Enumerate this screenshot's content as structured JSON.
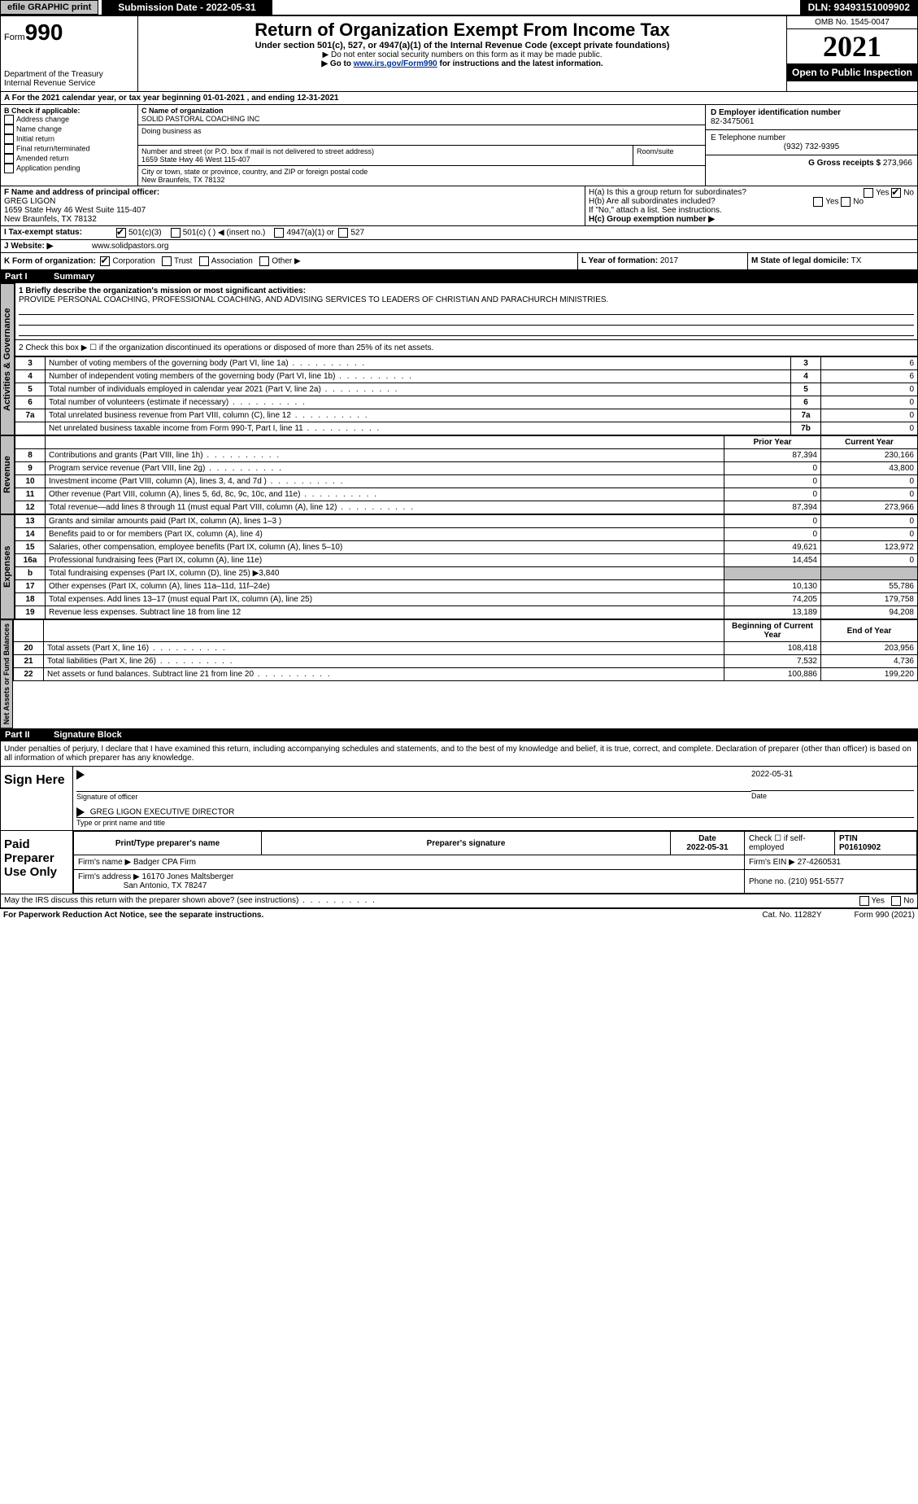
{
  "topbar": {
    "efile": "efile GRAPHIC print",
    "submission": "Submission Date - 2022-05-31",
    "dln": "DLN: 93493151009902"
  },
  "header": {
    "form_word": "Form",
    "form_num": "990",
    "dept": "Department of the Treasury",
    "irs": "Internal Revenue Service",
    "title": "Return of Organization Exempt From Income Tax",
    "subtitle": "Under section 501(c), 527, or 4947(a)(1) of the Internal Revenue Code (except private foundations)",
    "note1": "▶ Do not enter social security numbers on this form as it may be made public.",
    "note2_pre": "▶ Go to ",
    "note2_link": "www.irs.gov/Form990",
    "note2_post": " for instructions and the latest information.",
    "omb": "OMB No. 1545-0047",
    "year": "2021",
    "open_public": "Open to Public Inspection"
  },
  "rowA": "A For the 2021 calendar year, or tax year beginning 01-01-2021    , and ending 12-31-2021",
  "B": {
    "title": "B Check if applicable:",
    "opts": [
      "Address change",
      "Name change",
      "Initial return",
      "Final return/terminated",
      "Amended return",
      "Application pending"
    ]
  },
  "C": {
    "name_label": "C Name of organization",
    "name": "SOLID PASTORAL COACHING INC",
    "dba_label": "Doing business as",
    "street_label": "Number and street (or P.O. box if mail is not delivered to street address)",
    "room_label": "Room/suite",
    "street": "1659 State Hwy 46 West 115-407",
    "city_label": "City or town, state or province, country, and ZIP or foreign postal code",
    "city": "New Braunfels, TX  78132"
  },
  "D": {
    "ein_label": "D Employer identification number",
    "ein": "82-3475061",
    "tel_label": "E Telephone number",
    "tel": "(932) 732-9395",
    "gross_label": "G Gross receipts $",
    "gross": "273,966"
  },
  "F": {
    "label": "F  Name and address of principal officer:",
    "name": "GREG LIGON",
    "addr1": "1659 State Hwy 46 West Suite 115-407",
    "addr2": "New Braunfels, TX  78132"
  },
  "H": {
    "a": "H(a)  Is this a group return for subordinates?",
    "a_yes": "Yes",
    "a_no": "No",
    "b": "H(b)  Are all subordinates included?",
    "b_note": "If \"No,\" attach a list. See instructions.",
    "c": "H(c)  Group exemption number ▶"
  },
  "I": {
    "label": "I    Tax-exempt status:",
    "opts": [
      "501(c)(3)",
      "501(c) (   ) ◀ (insert no.)",
      "4947(a)(1) or",
      "527"
    ]
  },
  "J": {
    "label": "J   Website: ▶",
    "value": "www.solidpastors.org"
  },
  "K": {
    "label": "K Form of organization:",
    "opts": [
      "Corporation",
      "Trust",
      "Association",
      "Other ▶"
    ],
    "L_label": "L Year of formation:",
    "L_val": "2017",
    "M_label": "M State of legal domicile:",
    "M_val": "TX"
  },
  "part1": {
    "header_num": "Part I",
    "header_title": "Summary",
    "line1_label": "1  Briefly describe the organization's mission or most significant activities:",
    "line1_text": "PROVIDE PERSONAL COACHING, PROFESSIONAL COACHING, AND ADVISING SERVICES TO LEADERS OF CHRISTIAN AND PARACHURCH MINISTRIES.",
    "line2": "2   Check this box ▶ ☐  if the organization discontinued its operations or disposed of more than 25% of its net assets.",
    "gov_rows": [
      {
        "n": "3",
        "d": "Number of voting members of the governing body (Part VI, line 1a)",
        "box": "3",
        "v": "6"
      },
      {
        "n": "4",
        "d": "Number of independent voting members of the governing body (Part VI, line 1b)",
        "box": "4",
        "v": "6"
      },
      {
        "n": "5",
        "d": "Total number of individuals employed in calendar year 2021 (Part V, line 2a)",
        "box": "5",
        "v": "0"
      },
      {
        "n": "6",
        "d": "Total number of volunteers (estimate if necessary)",
        "box": "6",
        "v": "0"
      },
      {
        "n": "7a",
        "d": "Total unrelated business revenue from Part VIII, column (C), line 12",
        "box": "7a",
        "v": "0"
      },
      {
        "n": "",
        "d": "Net unrelated business taxable income from Form 990-T, Part I, line 11",
        "box": "7b",
        "v": "0"
      }
    ],
    "col_prior": "Prior Year",
    "col_current": "Current Year",
    "rev_rows": [
      {
        "n": "8",
        "d": "Contributions and grants (Part VIII, line 1h)",
        "p": "87,394",
        "c": "230,166"
      },
      {
        "n": "9",
        "d": "Program service revenue (Part VIII, line 2g)",
        "p": "0",
        "c": "43,800"
      },
      {
        "n": "10",
        "d": "Investment income (Part VIII, column (A), lines 3, 4, and 7d )",
        "p": "0",
        "c": "0"
      },
      {
        "n": "11",
        "d": "Other revenue (Part VIII, column (A), lines 5, 6d, 8c, 9c, 10c, and 11e)",
        "p": "0",
        "c": "0"
      },
      {
        "n": "12",
        "d": "Total revenue—add lines 8 through 11 (must equal Part VIII, column (A), line 12)",
        "p": "87,394",
        "c": "273,966"
      }
    ],
    "exp_rows": [
      {
        "n": "13",
        "d": "Grants and similar amounts paid (Part IX, column (A), lines 1–3 )",
        "p": "0",
        "c": "0"
      },
      {
        "n": "14",
        "d": "Benefits paid to or for members (Part IX, column (A), line 4)",
        "p": "0",
        "c": "0"
      },
      {
        "n": "15",
        "d": "Salaries, other compensation, employee benefits (Part IX, column (A), lines 5–10)",
        "p": "49,621",
        "c": "123,972"
      },
      {
        "n": "16a",
        "d": "Professional fundraising fees (Part IX, column (A), line 11e)",
        "p": "14,454",
        "c": "0"
      },
      {
        "n": "b",
        "d": "Total fundraising expenses (Part IX, column (D), line 25) ▶3,840",
        "p": "",
        "c": "",
        "shade": true
      },
      {
        "n": "17",
        "d": "Other expenses (Part IX, column (A), lines 11a–11d, 11f–24e)",
        "p": "10,130",
        "c": "55,786"
      },
      {
        "n": "18",
        "d": "Total expenses. Add lines 13–17 (must equal Part IX, column (A), line 25)",
        "p": "74,205",
        "c": "179,758"
      },
      {
        "n": "19",
        "d": "Revenue less expenses. Subtract line 18 from line 12",
        "p": "13,189",
        "c": "94,208"
      }
    ],
    "net_header_p": "Beginning of Current Year",
    "net_header_c": "End of Year",
    "net_rows": [
      {
        "n": "20",
        "d": "Total assets (Part X, line 16)",
        "p": "108,418",
        "c": "203,956"
      },
      {
        "n": "21",
        "d": "Total liabilities (Part X, line 26)",
        "p": "7,532",
        "c": "4,736"
      },
      {
        "n": "22",
        "d": "Net assets or fund balances. Subtract line 21 from line 20",
        "p": "100,886",
        "c": "199,220"
      }
    ],
    "vtabs": [
      "Activities & Governance",
      "Revenue",
      "Expenses",
      "Net Assets or Fund Balances"
    ]
  },
  "part2": {
    "header_num": "Part II",
    "header_title": "Signature Block",
    "decl": "Under penalties of perjury, I declare that I have examined this return, including accompanying schedules and statements, and to the best of my knowledge and belief, it is true, correct, and complete. Declaration of preparer (other than officer) is based on all information of which preparer has any knowledge.",
    "sign_label": "Sign Here",
    "sig_officer": "Signature of officer",
    "sig_date": "Date",
    "date_val": "2022-05-31",
    "name_title": "GREG LIGON  EXECUTIVE DIRECTOR",
    "name_title_label": "Type or print name and title",
    "paid_label": "Paid Preparer Use Only",
    "th_preparer": "Print/Type preparer's name",
    "th_sig": "Preparer's signature",
    "th_date": "Date",
    "th_check": "Check ☐ if self-employed",
    "th_ptin": "PTIN",
    "prep_date": "2022-05-31",
    "ptin": "P01610902",
    "firm_name_label": "Firm's name      ▶",
    "firm_name": "Badger CPA Firm",
    "firm_ein_label": "Firm's EIN ▶",
    "firm_ein": "27-4260531",
    "firm_addr_label": "Firm's address ▶",
    "firm_addr1": "16170 Jones Maltsberger",
    "firm_addr2": "San Antonio, TX  78247",
    "phone_label": "Phone no.",
    "phone": "(210) 951-5577",
    "discuss": "May the IRS discuss this return with the preparer shown above? (see instructions)",
    "yes": "Yes",
    "no": "No"
  },
  "footer": {
    "left": "For Paperwork Reduction Act Notice, see the separate instructions.",
    "mid": "Cat. No. 11282Y",
    "right": "Form 990 (2021)"
  }
}
